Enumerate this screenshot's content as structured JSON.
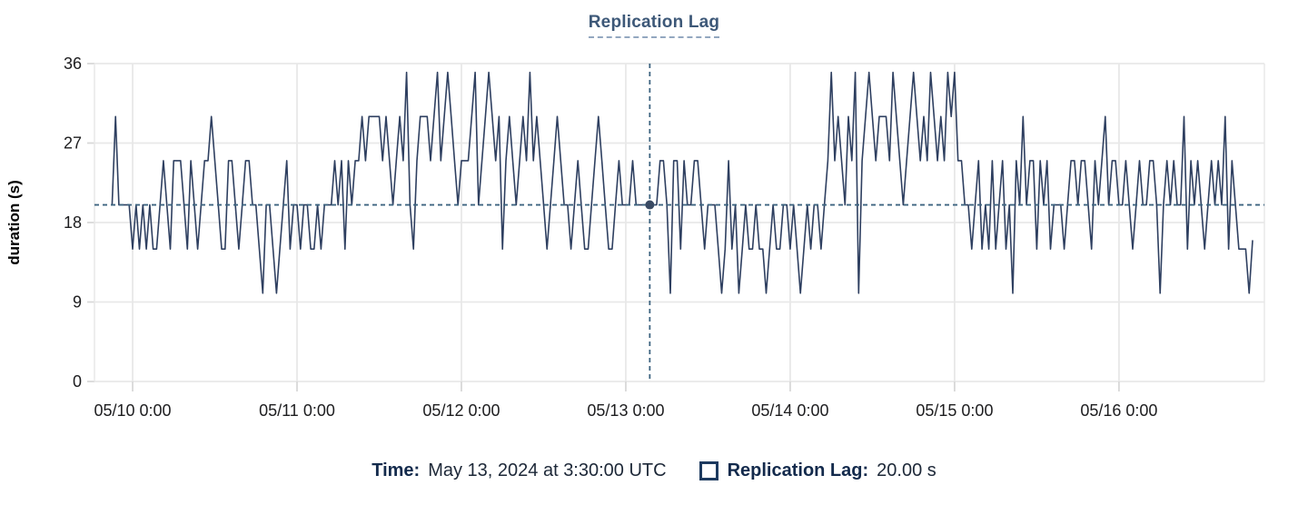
{
  "chart": {
    "title": "Replication Lag",
    "ylabel": "duration (s)",
    "legend": {
      "time_label": "Time:",
      "time_value": "May 13, 2024 at 3:30:00 UTC",
      "series_label": "Replication Lag:",
      "series_value": "20.00 s"
    }
  },
  "chart_data": {
    "type": "line",
    "title": "Replication Lag",
    "xlabel": "",
    "ylabel": "duration (s)",
    "ylim": [
      0,
      36
    ],
    "y_ticks": [
      0,
      9,
      18,
      27,
      36
    ],
    "grid": true,
    "legend_position": "bottom",
    "x_axis": {
      "start_hour": -5.57,
      "end_hour": 165.23,
      "hour_origin_label": "05/10 0:00",
      "ticks": [
        {
          "hour": 0,
          "label": "05/10 0:00"
        },
        {
          "hour": 24,
          "label": "05/11 0:00"
        },
        {
          "hour": 48,
          "label": "05/12 0:00"
        },
        {
          "hour": 72,
          "label": "05/13 0:00"
        },
        {
          "hour": 96,
          "label": "05/14 0:00"
        },
        {
          "hour": 120,
          "label": "05/15 0:00"
        },
        {
          "hour": 144,
          "label": "05/16 0:00"
        }
      ]
    },
    "series": [
      {
        "name": "Replication Lag",
        "unit": "s",
        "start_hour": -3,
        "step_hours": 0.5,
        "values": [
          20,
          30,
          20,
          20,
          20,
          20,
          15,
          20,
          15,
          20,
          15,
          20,
          15,
          15,
          20,
          25,
          20,
          15,
          25,
          25,
          25,
          20,
          15,
          25,
          20,
          15,
          20,
          25,
          25,
          30,
          25,
          20,
          15,
          15,
          25,
          25,
          20,
          15,
          20,
          25,
          25,
          20,
          20,
          15,
          10,
          20,
          20,
          15,
          10,
          15,
          20,
          25,
          15,
          20,
          20,
          15,
          20,
          20,
          15,
          15,
          20,
          15,
          20,
          20,
          20,
          25,
          20,
          25,
          15,
          25,
          20,
          25,
          25,
          30,
          25,
          30,
          30,
          30,
          30,
          25,
          30,
          25,
          20,
          25,
          30,
          25,
          35,
          20,
          15,
          25,
          30,
          30,
          30,
          25,
          30,
          35,
          25,
          30,
          35,
          30,
          25,
          20,
          25,
          25,
          25,
          30,
          35,
          20,
          25,
          30,
          35,
          30,
          25,
          30,
          15,
          25,
          30,
          25,
          20,
          25,
          30,
          25,
          35,
          25,
          30,
          25,
          20,
          15,
          20,
          25,
          30,
          25,
          20,
          20,
          15,
          20,
          25,
          20,
          15,
          15,
          20,
          25,
          30,
          25,
          20,
          15,
          15,
          20,
          25,
          20,
          20,
          20,
          25,
          20,
          20,
          20,
          20,
          20,
          20,
          20,
          25,
          25,
          20,
          10,
          25,
          25,
          15,
          25,
          20,
          20,
          25,
          25,
          20,
          15,
          20,
          20,
          20,
          15,
          10,
          15,
          25,
          15,
          20,
          10,
          15,
          20,
          15,
          15,
          20,
          15,
          15,
          10,
          15,
          20,
          15,
          15,
          20,
          20,
          15,
          20,
          15,
          10,
          15,
          20,
          15,
          20,
          20,
          15,
          20,
          25,
          35,
          25,
          30,
          25,
          20,
          30,
          25,
          35,
          10,
          25,
          30,
          35,
          30,
          25,
          30,
          30,
          30,
          25,
          35,
          30,
          25,
          20,
          25,
          30,
          35,
          30,
          25,
          30,
          25,
          35,
          30,
          25,
          30,
          25,
          35,
          30,
          35,
          25,
          25,
          20,
          20,
          15,
          20,
          25,
          15,
          20,
          15,
          25,
          15,
          20,
          25,
          15,
          20,
          10,
          25,
          20,
          30,
          20,
          25,
          25,
          15,
          25,
          20,
          25,
          15,
          20,
          20,
          20,
          15,
          20,
          25,
          25,
          20,
          25,
          25,
          20,
          15,
          25,
          20,
          25,
          30,
          20,
          25,
          25,
          20,
          20,
          25,
          20,
          15,
          20,
          25,
          20,
          20,
          25,
          25,
          20,
          10,
          20,
          25,
          20,
          25,
          20,
          20,
          30,
          15,
          25,
          20,
          25,
          20,
          15,
          20,
          25,
          20,
          25,
          20,
          30,
          15,
          25,
          20,
          15,
          15,
          15,
          10,
          16
        ]
      }
    ],
    "crosshair": {
      "hour": 75.5,
      "value": 20,
      "time_text": "May 13, 2024 at 3:30:00 UTC",
      "value_text": "20.00 s"
    },
    "colors": {
      "line": "#2e3f60",
      "crosshair": "#3d6480",
      "point": "#3a4a63",
      "grid": "#e8e8e8",
      "tick": "#d8d8d8",
      "tick_text": "#1d1d1f",
      "title": "#3d5878",
      "legend_label": "#132a4c",
      "legend_value": "#1d2838"
    }
  }
}
